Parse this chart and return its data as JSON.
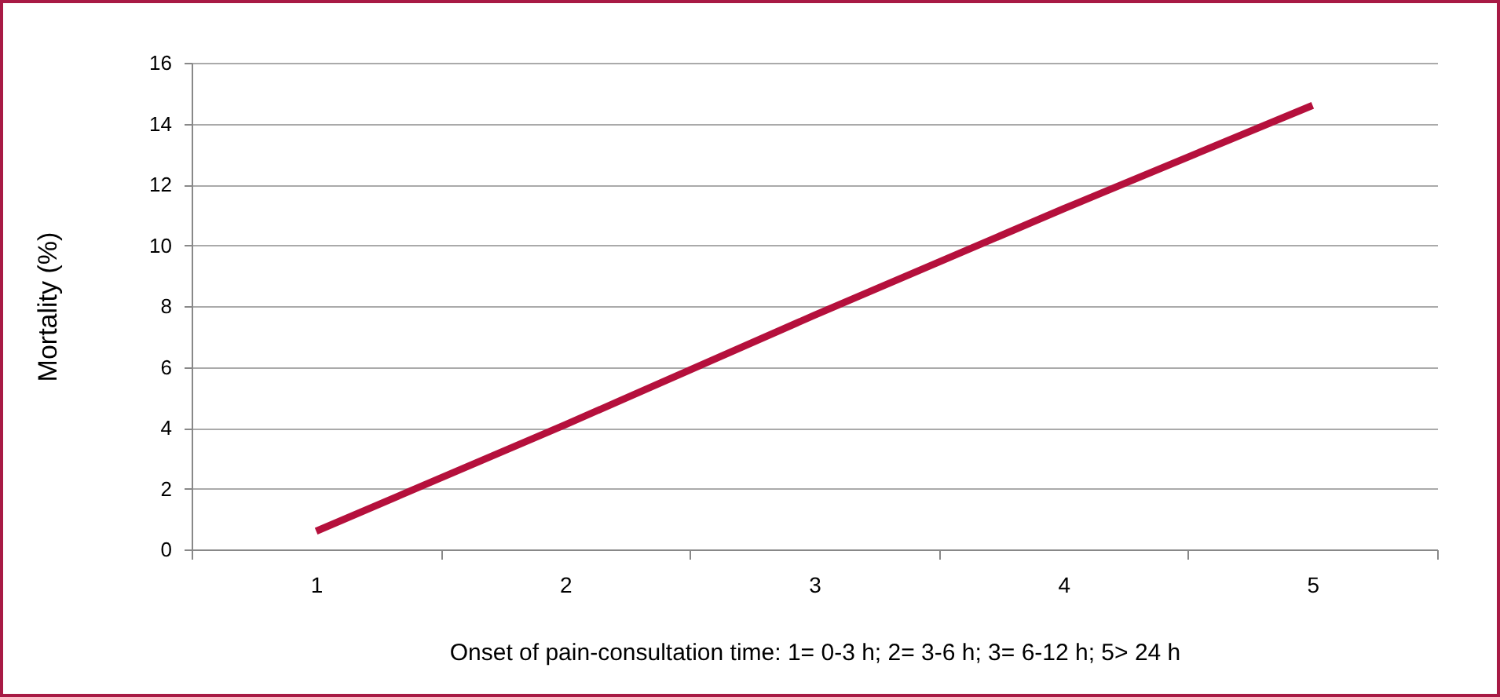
{
  "chart_data": {
    "type": "line",
    "xlabel": "Onset of pain-consultation time: 1= 0-3 h; 2= 3-6 h; 3= 6-12 h; 5> 24 h",
    "ylabel": "Mortality (%)",
    "categories": [
      "1",
      "2",
      "3",
      "4",
      "5"
    ],
    "series": [
      {
        "color": "#b5103c",
        "values": [
          0.6,
          4.1,
          7.7,
          11.2,
          14.6
        ]
      }
    ],
    "ylim": [
      0,
      16
    ],
    "yticks": [
      0,
      2,
      4,
      6,
      8,
      10,
      12,
      14,
      16
    ],
    "grid": "y",
    "line_style": "solid"
  }
}
